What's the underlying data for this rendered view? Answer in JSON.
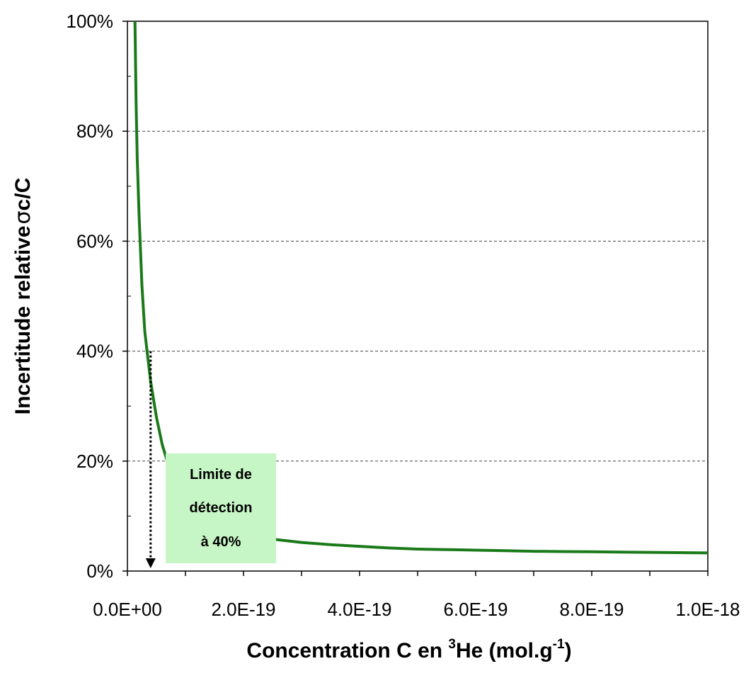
{
  "chart_data": {
    "type": "line",
    "x_tick_labels": [
      "0.0E+00",
      "2.0E-19",
      "4.0E-19",
      "6.0E-19",
      "8.0E-19",
      "1.0E-18"
    ],
    "y_tick_labels": [
      "0%",
      "20%",
      "40%",
      "60%",
      "80%",
      "100%"
    ],
    "xlim": [
      0,
      1e-18
    ],
    "ylim": [
      0,
      1.0
    ],
    "grid": "horizontal dashed at 20% intervals",
    "series": [
      {
        "color": "#1a7a1a",
        "x": [
          1.3e-20,
          1.5e-20,
          1.7e-20,
          2e-20,
          2.5e-20,
          3e-20,
          3.5e-20,
          4e-20,
          5e-20,
          6e-20,
          7e-20,
          8e-20,
          1e-19,
          1.2e-19,
          1.4e-19,
          1.6e-19,
          1.8e-19,
          2e-19,
          2.5e-19,
          3e-19,
          3.5e-19,
          4e-19,
          4.5e-19,
          5e-19,
          5.5e-19,
          6e-19,
          6.5e-19,
          7e-19,
          7.5e-19,
          8e-19,
          8.5e-19,
          9e-19,
          9.5e-19,
          1e-18
        ],
        "y": [
          1.0,
          0.85,
          0.75,
          0.65,
          0.52,
          0.435,
          0.39,
          0.345,
          0.28,
          0.23,
          0.195,
          0.17,
          0.135,
          0.11,
          0.095,
          0.083,
          0.072,
          0.066,
          0.058,
          0.052,
          0.048,
          0.045,
          0.042,
          0.04,
          0.039,
          0.038,
          0.037,
          0.036,
          0.0355,
          0.035,
          0.0345,
          0.034,
          0.0335,
          0.033
        ]
      }
    ],
    "annotation": {
      "lines": [
        "Limite de",
        "détection",
        "à 40%"
      ],
      "background": "#c6f5c6",
      "arrow_x": 4e-20,
      "arrow_from_y": 0.4,
      "arrow_to_y": 0.0
    }
  }
}
